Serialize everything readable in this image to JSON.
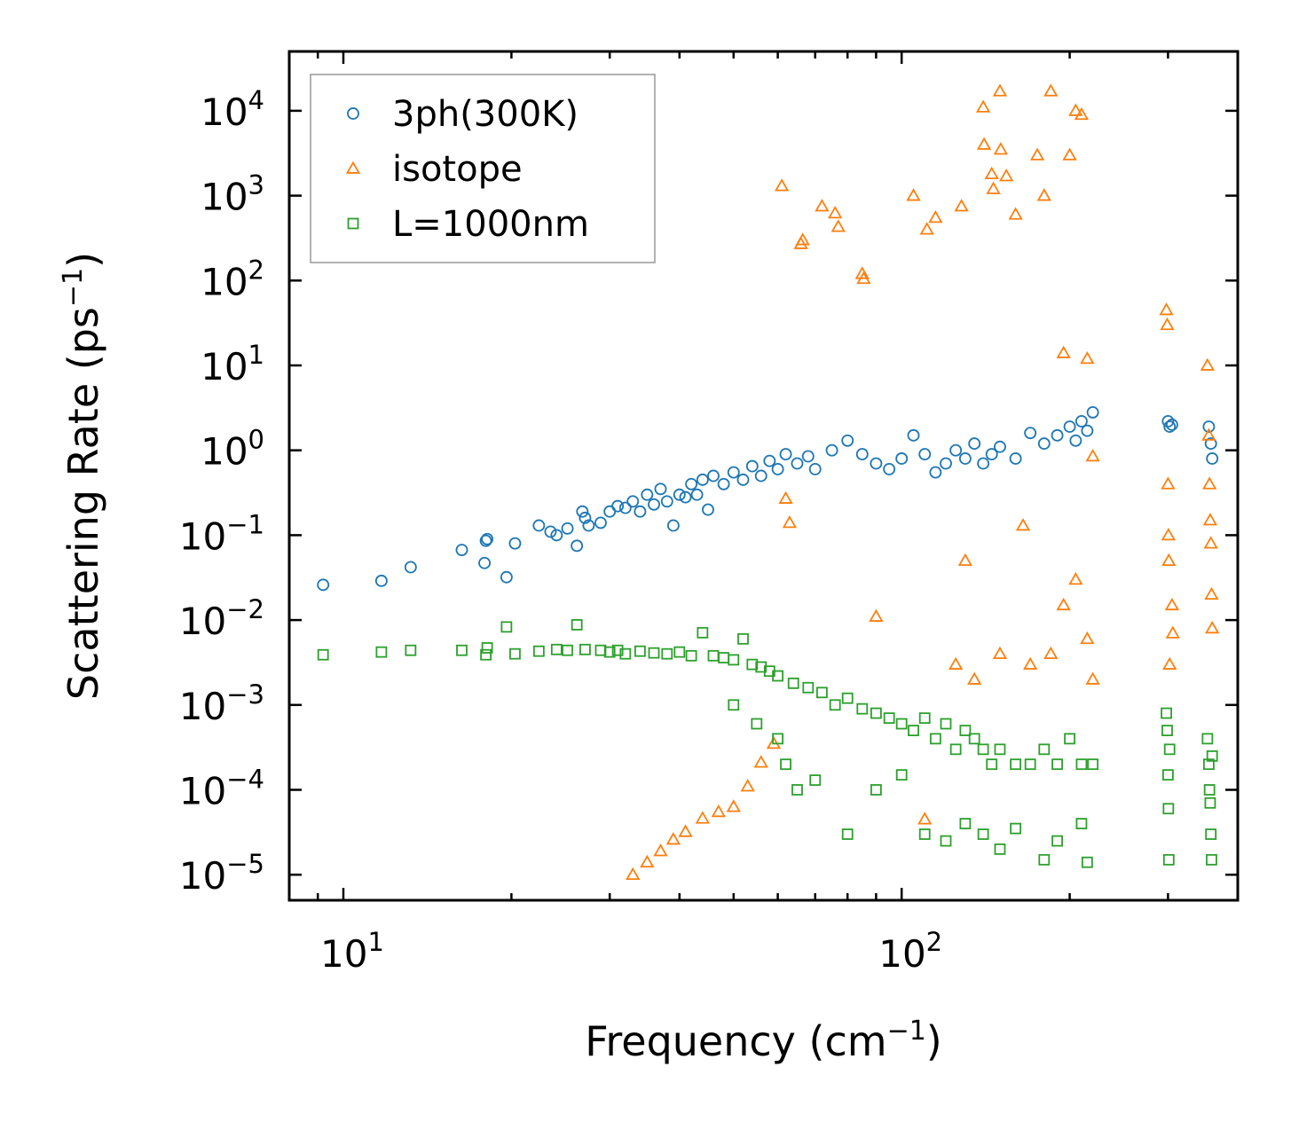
{
  "chart_data": {
    "type": "scatter",
    "title": "",
    "xlabel": {
      "base": "Frequency (cm",
      "sup": "−1",
      "tail": ")"
    },
    "ylabel": {
      "base": "Scattering Rate (ps",
      "sup": "−1",
      "tail": ")"
    },
    "xscale": "log",
    "yscale": "log",
    "xlim": [
      8.0,
      400.0
    ],
    "ylim": [
      5e-06,
      50000.0
    ],
    "grid": false,
    "legend_position": "top-left",
    "x_ticks": [
      {
        "value": 10,
        "base": "10",
        "exp": "1"
      },
      {
        "value": 100,
        "base": "10",
        "exp": "2"
      }
    ],
    "y_ticks": [
      {
        "value": 1e-05,
        "base": "10",
        "exp": "−5"
      },
      {
        "value": 0.0001,
        "base": "10",
        "exp": "−4"
      },
      {
        "value": 0.001,
        "base": "10",
        "exp": "−3"
      },
      {
        "value": 0.01,
        "base": "10",
        "exp": "−2"
      },
      {
        "value": 0.1,
        "base": "10",
        "exp": "−1"
      },
      {
        "value": 1,
        "base": "10",
        "exp": "0"
      },
      {
        "value": 10,
        "base": "10",
        "exp": "1"
      },
      {
        "value": 100,
        "base": "10",
        "exp": "2"
      },
      {
        "value": 1000,
        "base": "10",
        "exp": "3"
      },
      {
        "value": 10000,
        "base": "10",
        "exp": "4"
      }
    ],
    "series": [
      {
        "name": "3ph(300K)",
        "marker": "circle",
        "color": "#1f77b4",
        "points": [
          [
            9.2,
            0.026
          ],
          [
            11.7,
            0.029
          ],
          [
            13.2,
            0.042
          ],
          [
            16.3,
            0.067
          ],
          [
            18.0,
            0.086
          ],
          [
            18.1,
            0.09
          ],
          [
            17.9,
            0.047
          ],
          [
            19.6,
            0.032
          ],
          [
            20.3,
            0.08
          ],
          [
            22.4,
            0.13
          ],
          [
            23.5,
            0.11
          ],
          [
            24.1,
            0.1
          ],
          [
            25.2,
            0.12
          ],
          [
            26.2,
            0.075
          ],
          [
            26.8,
            0.19
          ],
          [
            27.1,
            0.16
          ],
          [
            27.5,
            0.13
          ],
          [
            28.9,
            0.14
          ],
          [
            30.0,
            0.19
          ],
          [
            31.0,
            0.22
          ],
          [
            32.0,
            0.21
          ],
          [
            33.0,
            0.25
          ],
          [
            34.0,
            0.19
          ],
          [
            35.0,
            0.3
          ],
          [
            36.0,
            0.23
          ],
          [
            37.0,
            0.35
          ],
          [
            38.0,
            0.25
          ],
          [
            39.0,
            0.13
          ],
          [
            40.0,
            0.3
          ],
          [
            41.0,
            0.28
          ],
          [
            42.0,
            0.4
          ],
          [
            43.0,
            0.3
          ],
          [
            44.0,
            0.45
          ],
          [
            45.0,
            0.2
          ],
          [
            46.0,
            0.5
          ],
          [
            48.0,
            0.4
          ],
          [
            50.0,
            0.55
          ],
          [
            52.0,
            0.45
          ],
          [
            54.0,
            0.65
          ],
          [
            56.0,
            0.5
          ],
          [
            58.0,
            0.75
          ],
          [
            60.0,
            0.6
          ],
          [
            62.0,
            0.9
          ],
          [
            65.0,
            0.7
          ],
          [
            68.0,
            0.85
          ],
          [
            70.0,
            0.6
          ],
          [
            75.0,
            1.0
          ],
          [
            80.0,
            1.3
          ],
          [
            85.0,
            0.9
          ],
          [
            90.0,
            0.7
          ],
          [
            95.0,
            0.6
          ],
          [
            100.0,
            0.8
          ],
          [
            105.0,
            1.5
          ],
          [
            110.0,
            0.9
          ],
          [
            115.0,
            0.55
          ],
          [
            120.0,
            0.7
          ],
          [
            125.0,
            1.0
          ],
          [
            130.0,
            0.8
          ],
          [
            135.0,
            1.2
          ],
          [
            140.0,
            0.7
          ],
          [
            145.0,
            0.9
          ],
          [
            150.0,
            1.1
          ],
          [
            160.0,
            0.8
          ],
          [
            170.0,
            1.6
          ],
          [
            180.0,
            1.2
          ],
          [
            190.0,
            1.5
          ],
          [
            200.0,
            1.9
          ],
          [
            205.0,
            1.3
          ],
          [
            210.0,
            2.2
          ],
          [
            215.0,
            1.7
          ],
          [
            220.0,
            2.8
          ],
          [
            300.0,
            2.2
          ],
          [
            302.0,
            1.9
          ],
          [
            305.0,
            2.0
          ],
          [
            355.0,
            1.9
          ],
          [
            358.0,
            1.2
          ],
          [
            360.0,
            0.8
          ]
        ]
      },
      {
        "name": "isotope",
        "marker": "triangle",
        "color": "#ff7f0e",
        "points": [
          [
            33.0,
            1e-05
          ],
          [
            35.0,
            1.4e-05
          ],
          [
            37.0,
            1.9e-05
          ],
          [
            39.0,
            2.6e-05
          ],
          [
            41.0,
            3.2e-05
          ],
          [
            44.0,
            4.6e-05
          ],
          [
            47.0,
            5.5e-05
          ],
          [
            50.0,
            6.3e-05
          ],
          [
            53.0,
            0.00011
          ],
          [
            56.0,
            0.00021
          ],
          [
            59.0,
            0.00035
          ],
          [
            61.0,
            1300.0
          ],
          [
            62.0,
            0.27
          ],
          [
            63.0,
            0.14
          ],
          [
            66.0,
            270.0
          ],
          [
            66.5,
            300.0
          ],
          [
            72.0,
            750.0
          ],
          [
            76.0,
            620.0
          ],
          [
            77.0,
            430.0
          ],
          [
            85.0,
            120.0
          ],
          [
            85.5,
            105.0
          ],
          [
            90.0,
            0.011
          ],
          [
            105.0,
            1000.0
          ],
          [
            110.0,
            4.5e-05
          ],
          [
            111.0,
            400.0
          ],
          [
            115.0,
            550.0
          ],
          [
            128.0,
            750.0
          ],
          [
            130.0,
            0.05
          ],
          [
            140.0,
            11000.0
          ],
          [
            140.5,
            4000.0
          ],
          [
            145.0,
            1800.0
          ],
          [
            146.0,
            1200.0
          ],
          [
            150.0,
            17000.0
          ],
          [
            150.5,
            3500.0
          ],
          [
            154.0,
            1700.0
          ],
          [
            160.0,
            600.0
          ],
          [
            165.0,
            0.13
          ],
          [
            175.0,
            3000.0
          ],
          [
            180.0,
            1000.0
          ],
          [
            185.0,
            17000.0
          ],
          [
            195.0,
            14.0
          ],
          [
            200.0,
            3000.0
          ],
          [
            205.0,
            10000.0
          ],
          [
            210.0,
            9000.0
          ],
          [
            215.0,
            12.0
          ],
          [
            220.0,
            0.85
          ],
          [
            125.0,
            0.003
          ],
          [
            135.0,
            0.002
          ],
          [
            150.0,
            0.004
          ],
          [
            170.0,
            0.003
          ],
          [
            185.0,
            0.004
          ],
          [
            195.0,
            0.015
          ],
          [
            205.0,
            0.03
          ],
          [
            215.0,
            0.006
          ],
          [
            220.0,
            0.002
          ],
          [
            298.0,
            45.0
          ],
          [
            299.0,
            30.0
          ],
          [
            300.0,
            0.4
          ],
          [
            300.5,
            0.1
          ],
          [
            301.0,
            0.05
          ],
          [
            302.0,
            0.003
          ],
          [
            305.0,
            0.015
          ],
          [
            306.0,
            0.007
          ],
          [
            353.0,
            10.0
          ],
          [
            355.0,
            1.5
          ],
          [
            356.0,
            0.4
          ],
          [
            357.0,
            0.15
          ],
          [
            358.0,
            0.08
          ],
          [
            359.0,
            0.02
          ],
          [
            360.0,
            0.008
          ]
        ]
      },
      {
        "name": "L=1000nm",
        "marker": "square",
        "color": "#2ca02c",
        "points": [
          [
            9.2,
            0.0039
          ],
          [
            11.7,
            0.0042
          ],
          [
            13.2,
            0.0044
          ],
          [
            16.3,
            0.0044
          ],
          [
            18.0,
            0.0039
          ],
          [
            18.1,
            0.0047
          ],
          [
            19.6,
            0.0083
          ],
          [
            20.3,
            0.004
          ],
          [
            22.4,
            0.0043
          ],
          [
            24.1,
            0.0045
          ],
          [
            25.2,
            0.0044
          ],
          [
            26.2,
            0.0088
          ],
          [
            27.1,
            0.0045
          ],
          [
            28.9,
            0.0044
          ],
          [
            30.0,
            0.0042
          ],
          [
            31.0,
            0.0044
          ],
          [
            32.0,
            0.004
          ],
          [
            34.0,
            0.0043
          ],
          [
            36.0,
            0.0041
          ],
          [
            38.0,
            0.004
          ],
          [
            40.0,
            0.0042
          ],
          [
            42.0,
            0.0038
          ],
          [
            44.0,
            0.0071
          ],
          [
            46.0,
            0.0038
          ],
          [
            48.0,
            0.0036
          ],
          [
            50.0,
            0.0034
          ],
          [
            52.0,
            0.006
          ],
          [
            54.0,
            0.003
          ],
          [
            56.0,
            0.0028
          ],
          [
            58.0,
            0.0025
          ],
          [
            60.0,
            0.0022
          ],
          [
            64.0,
            0.0018
          ],
          [
            68.0,
            0.0016
          ],
          [
            72.0,
            0.0014
          ],
          [
            76.0,
            0.001
          ],
          [
            80.0,
            0.0012
          ],
          [
            85.0,
            0.0009
          ],
          [
            90.0,
            0.0008
          ],
          [
            95.0,
            0.0007
          ],
          [
            100.0,
            0.0006
          ],
          [
            105.0,
            0.0005
          ],
          [
            110.0,
            0.0007
          ],
          [
            115.0,
            0.0004
          ],
          [
            120.0,
            0.0006
          ],
          [
            125.0,
            0.0003
          ],
          [
            130.0,
            0.0005
          ],
          [
            135.0,
            0.0004
          ],
          [
            140.0,
            0.0003
          ],
          [
            145.0,
            0.0002
          ],
          [
            150.0,
            0.0003
          ],
          [
            160.0,
            0.0002
          ],
          [
            170.0,
            0.0002
          ],
          [
            180.0,
            0.0003
          ],
          [
            190.0,
            0.0002
          ],
          [
            200.0,
            0.0004
          ],
          [
            210.0,
            0.0002
          ],
          [
            220.0,
            0.0002
          ],
          [
            50.0,
            0.001
          ],
          [
            55.0,
            0.0006
          ],
          [
            60.0,
            0.0004
          ],
          [
            62.0,
            0.0002
          ],
          [
            65.0,
            0.0001
          ],
          [
            70.0,
            0.00013
          ],
          [
            80.0,
            3e-05
          ],
          [
            90.0,
            0.0001
          ],
          [
            100.0,
            0.00015
          ],
          [
            110.0,
            3e-05
          ],
          [
            120.0,
            2.5e-05
          ],
          [
            130.0,
            4e-05
          ],
          [
            140.0,
            3e-05
          ],
          [
            150.0,
            2e-05
          ],
          [
            160.0,
            3.5e-05
          ],
          [
            180.0,
            1.5e-05
          ],
          [
            190.0,
            2.5e-05
          ],
          [
            210.0,
            4e-05
          ],
          [
            215.0,
            1.4e-05
          ],
          [
            298.0,
            0.0008
          ],
          [
            299.0,
            0.0005
          ],
          [
            300.0,
            0.00015
          ],
          [
            300.5,
            6e-05
          ],
          [
            301.0,
            1.5e-05
          ],
          [
            302.0,
            0.0003
          ],
          [
            353.0,
            0.0004
          ],
          [
            355.0,
            0.0002
          ],
          [
            356.0,
            0.0001
          ],
          [
            357.0,
            7e-05
          ],
          [
            358.0,
            3e-05
          ],
          [
            359.0,
            1.5e-05
          ],
          [
            360.0,
            0.00025
          ]
        ]
      }
    ]
  }
}
